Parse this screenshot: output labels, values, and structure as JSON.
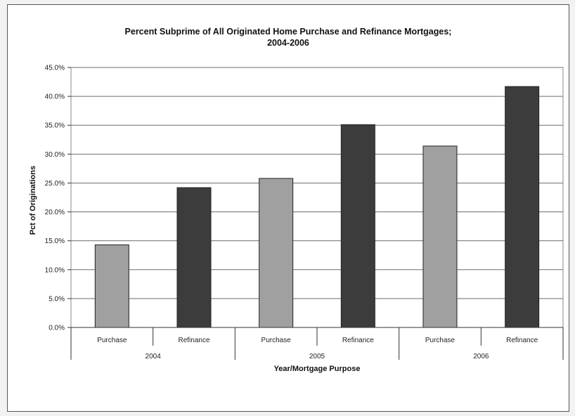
{
  "chart_data": {
    "type": "bar",
    "title_line1": "Percent Subprime of All Originated Home Purchase and Refinance Mortgages;",
    "title_line2": "2004-2006",
    "xlabel": "Year/Mortgage Purpose",
    "ylabel": "Pct of Originations",
    "ylim": [
      0,
      45
    ],
    "yticks": [
      "0.0%",
      "5.0%",
      "10.0%",
      "15.0%",
      "20.0%",
      "25.0%",
      "30.0%",
      "35.0%",
      "40.0%",
      "45.0%"
    ],
    "grid": true,
    "groups": [
      "2004",
      "2005",
      "2006"
    ],
    "categories": [
      "Purchase",
      "Refinance",
      "Purchase",
      "Refinance",
      "Purchase",
      "Refinance"
    ],
    "values": [
      14.3,
      24.2,
      25.8,
      35.1,
      31.4,
      41.7
    ],
    "colors": {
      "Purchase": "#a0a0a0",
      "Refinance": "#3c3c3c"
    }
  }
}
